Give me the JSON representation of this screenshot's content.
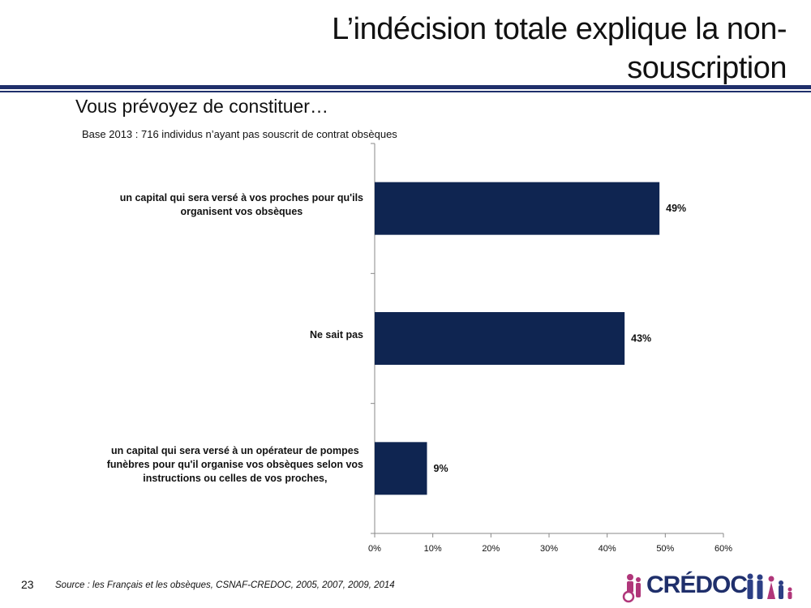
{
  "header": {
    "title": "L’indécision totale explique la non-souscription",
    "title_line1": "L’indécision totale explique la non-",
    "title_line2": "souscription"
  },
  "question": "Vous prévoyez de constituer…",
  "base_note": "Base 2013 : 716 individus n’ayant pas souscrit de contrat obsèques",
  "chart_data": {
    "type": "bar",
    "orientation": "horizontal",
    "categories": [
      "un capital qui sera versé à vos proches pour qu'ils organisent vos obsèques",
      "Ne sait pas",
      "un capital qui sera versé à un opérateur de pompes funèbres pour qu'il organise vos obsèques selon vos instructions ou celles de vos proches,"
    ],
    "category_lines": [
      [
        "un capital qui sera versé à vos proches pour qu'ils",
        "organisent vos obsèques"
      ],
      [
        "Ne sait pas"
      ],
      [
        "un capital qui sera versé à un opérateur de pompes",
        "funèbres pour qu'il organise vos obsèques selon vos",
        "instructions ou celles de vos proches,"
      ]
    ],
    "values": [
      49,
      43,
      9
    ],
    "data_labels": [
      "49%",
      "43%",
      "9%"
    ],
    "xlim": [
      0,
      60
    ],
    "ticks": [
      0,
      10,
      20,
      30,
      40,
      50,
      60
    ],
    "tick_labels": [
      "0%",
      "10%",
      "20%",
      "30%",
      "40%",
      "50%",
      "60%"
    ],
    "bar_color": "#0f2551",
    "grid": false,
    "legend": "none"
  },
  "footer": {
    "page_number": "23",
    "source": "Source : les Français et les obsèques, CSNAF-CREDOC, 2005, 2007, 2009, 2014",
    "logo_text": "CRÉDOC"
  },
  "colors": {
    "brand": "#1f2f6b",
    "bar": "#0f2551"
  }
}
